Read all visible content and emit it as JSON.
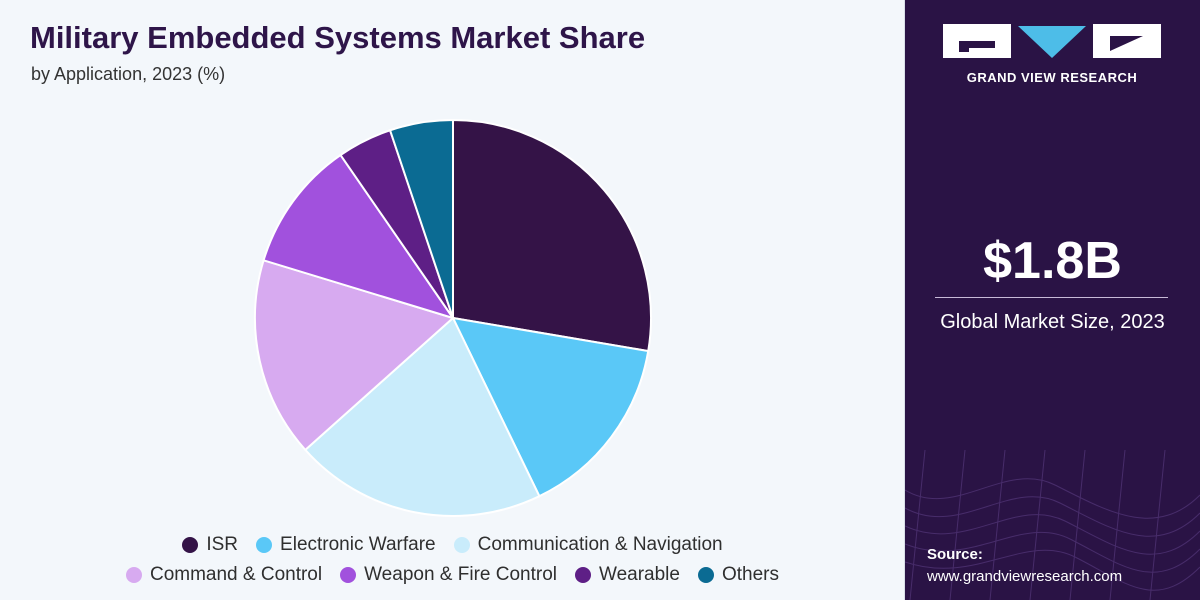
{
  "header": {
    "title": "Military Embedded Systems Market Share",
    "subtitle": "by Application, 2023 (%)"
  },
  "sidebar": {
    "brand": "GRAND VIEW RESEARCH",
    "market_size": "$1.8B",
    "market_label": "Global Market Size, 2023",
    "source_label": "Source:",
    "source_url": "www.grandviewresearch.com"
  },
  "chart_data": {
    "type": "pie",
    "title": "Military Embedded Systems Market Share",
    "subtitle": "by Application, 2023 (%)",
    "legend_position": "bottom",
    "categories": [
      "ISR",
      "Electronic Warfare",
      "Communication & Navigation",
      "Command & Control",
      "Weapon & Fire Control",
      "Wearable",
      "Others"
    ],
    "values": [
      28.5,
      15.6,
      21.2,
      16.8,
      11.0,
      4.6,
      5.3
    ],
    "colors": [
      "#341347",
      "#5ac8f7",
      "#c9ecfb",
      "#d7aaf0",
      "#a151dd",
      "#5e1f86",
      "#0b6b93"
    ]
  },
  "colors": {
    "sidebar_bg": "#2a1345",
    "title": "#2e1549",
    "chart_bg": "#f3f7fb"
  }
}
